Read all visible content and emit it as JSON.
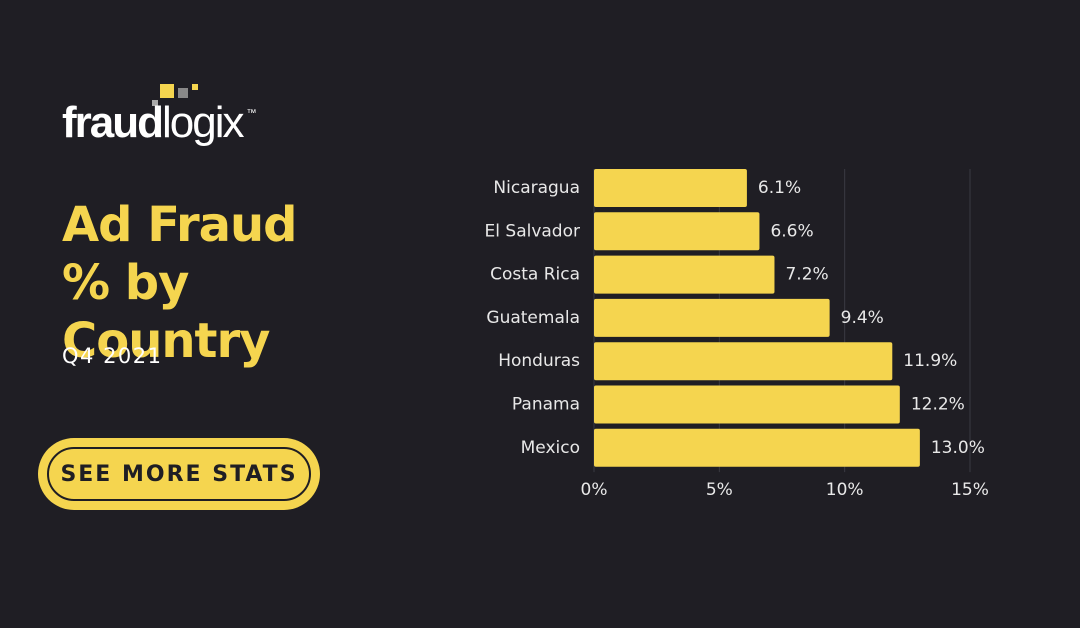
{
  "logo": {
    "bold": "fraud",
    "light": "logix",
    "mark": "™"
  },
  "headline": "Ad Fraud % by Country",
  "subtitle": "Q4 2021",
  "button": "SEE MORE STATS",
  "chart_data": {
    "type": "hbar",
    "categories": [
      "Nicaragua",
      "El Salvador",
      "Costa Rica",
      "Guatemala",
      "Honduras",
      "Panama",
      "Mexico"
    ],
    "values": [
      6.1,
      6.6,
      7.2,
      9.4,
      11.9,
      12.2,
      13.0
    ],
    "value_labels": [
      "6.1%",
      "6.6%",
      "7.2%",
      "9.4%",
      "11.9%",
      "12.2%",
      "13.0%"
    ],
    "color": "#f5d54f",
    "xlim": [
      0,
      15
    ],
    "xticks": [
      {
        "value": 0,
        "label": "0%"
      },
      {
        "value": 5,
        "label": "5%"
      },
      {
        "value": 10,
        "label": "10%"
      },
      {
        "value": 15,
        "label": "15%"
      }
    ],
    "grid": true
  }
}
